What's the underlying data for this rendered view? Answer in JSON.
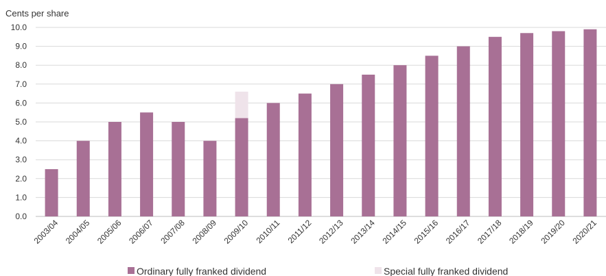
{
  "chart_data": {
    "type": "bar",
    "stacked": true,
    "ylabel": "Cents per share",
    "ylim": [
      0,
      10
    ],
    "yticks": [
      "0.0",
      "1.0",
      "2.0",
      "3.0",
      "4.0",
      "5.0",
      "6.0",
      "7.0",
      "8.0",
      "9.0",
      "10.0"
    ],
    "grid": true,
    "legend_position": "bottom",
    "categories": [
      "2003/04",
      "2004/05",
      "2005/06",
      "2006/07",
      "2007/08",
      "2008/09",
      "2009/10",
      "2010/11",
      "2011/12",
      "2012/13",
      "2013/14",
      "2014/15",
      "2015/16",
      "2016/17",
      "2017/18",
      "2018/19",
      "2019/20",
      "2020/21"
    ],
    "series": [
      {
        "name": "Ordinary fully franked dividend",
        "color": "#a87095",
        "values": [
          2.5,
          4.0,
          5.0,
          5.5,
          5.0,
          4.0,
          5.2,
          6.0,
          6.5,
          7.0,
          7.5,
          8.0,
          8.5,
          9.0,
          9.5,
          9.7,
          9.8,
          9.9
        ]
      },
      {
        "name": "Special fully franked dividend",
        "color": "#efe3ea",
        "values": [
          0,
          0,
          0,
          0,
          0,
          0,
          1.4,
          0,
          0,
          0,
          0,
          0,
          0,
          0,
          0,
          0,
          0,
          0
        ]
      }
    ]
  }
}
